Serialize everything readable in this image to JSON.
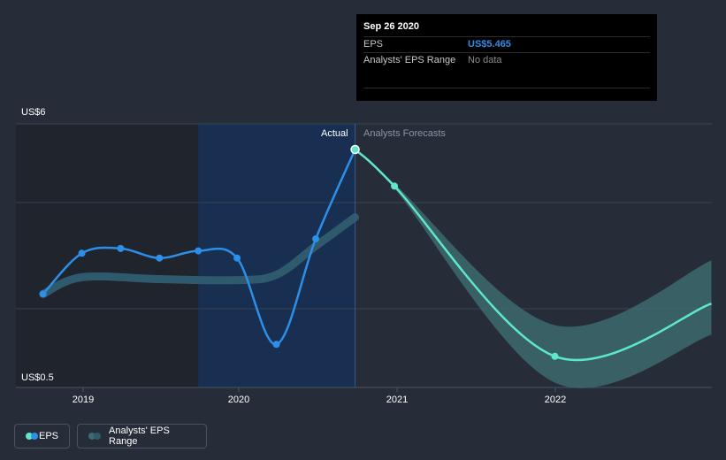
{
  "colors": {
    "background": "#262d39",
    "eps": "#2c8fe8",
    "forecast": "#5ee7cc",
    "range": "#2f5a6e",
    "forecast_range": "#3c6a6d",
    "shade_dark": "#1f242d",
    "shade_blue": "#182f52"
  },
  "tooltip": {
    "date": "Sep 26 2020",
    "eps_label": "EPS",
    "eps_value": "US$5.465",
    "range_label": "Analysts' EPS Range",
    "range_value": "No data"
  },
  "labels": {
    "actual": "Actual",
    "forecast": "Analysts Forecasts"
  },
  "legend": {
    "eps": "EPS",
    "range": "Analysts' EPS Range"
  },
  "chart_data": {
    "type": "line",
    "ylim": [
      0.5,
      6
    ],
    "y_tick_labels": [
      "US$6",
      "US$0.5"
    ],
    "x_tick_labels": [
      "2019",
      "2020",
      "2021",
      "2022"
    ],
    "grid": true,
    "legend_placement": "bottom-left",
    "actual_date": "2020-09-26",
    "series": [
      {
        "name": "EPS",
        "kind": "actual",
        "points": [
          [
            "2018-09-29",
            2.45
          ],
          [
            "2018-12-29",
            3.3
          ],
          [
            "2019-03-30",
            3.4
          ],
          [
            "2019-06-29",
            3.2
          ],
          [
            "2019-09-28",
            3.35
          ],
          [
            "2019-12-28",
            3.2
          ],
          [
            "2020-03-28",
            1.4
          ],
          [
            "2020-06-27",
            3.6
          ],
          [
            "2020-09-26",
            5.465
          ]
        ]
      },
      {
        "name": "EPS",
        "kind": "forecast",
        "points": [
          [
            "2020-09-26",
            5.465
          ],
          [
            "2020-12-26",
            4.7
          ],
          [
            "2021-12-31",
            1.15
          ],
          [
            "2022-12-31",
            2.25
          ]
        ]
      },
      {
        "name": "Analysts' EPS Range",
        "kind": "historical_range",
        "points": [
          [
            "2018-09-29",
            2.45
          ],
          [
            "2018-12-29",
            2.8
          ],
          [
            "2019-06-29",
            2.76
          ],
          [
            "2019-12-28",
            2.74
          ],
          [
            "2020-03-28",
            2.85
          ],
          [
            "2020-06-27",
            3.45
          ],
          [
            "2020-09-26",
            4.05
          ]
        ]
      },
      {
        "name": "Analysts' EPS Range",
        "kind": "forecast_range",
        "low": [
          [
            "2020-09-26",
            5.465
          ],
          [
            "2020-12-26",
            4.65
          ],
          [
            "2021-12-31",
            0.6
          ],
          [
            "2022-12-31",
            1.6
          ]
        ],
        "high": [
          [
            "2020-09-26",
            5.465
          ],
          [
            "2020-12-26",
            4.75
          ],
          [
            "2021-12-31",
            1.8
          ],
          [
            "2022-12-31",
            3.15
          ]
        ]
      }
    ]
  }
}
